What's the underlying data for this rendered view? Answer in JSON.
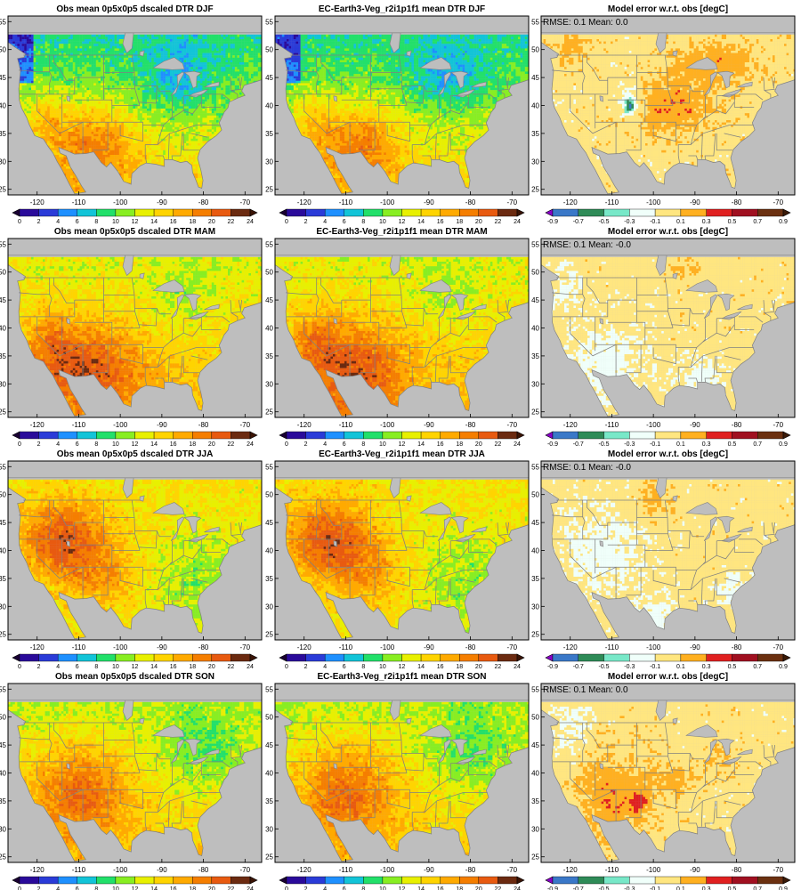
{
  "figure": {
    "panels": [
      {
        "title": "Obs mean 0p5x0p5 dscaled DTR DJF",
        "kind": "dtr",
        "season": "DJF",
        "annotation": ""
      },
      {
        "title": "EC-Earth3-Veg_r2i1p1f1 mean DTR DJF",
        "kind": "dtr",
        "season": "DJF",
        "annotation": ""
      },
      {
        "title": "Model error w.r.t. obs [degC]",
        "kind": "err",
        "season": "DJF",
        "annotation": "RMSE: 0.1   Mean: 0.0"
      },
      {
        "title": "Obs mean 0p5x0p5 dscaled DTR MAM",
        "kind": "dtr",
        "season": "MAM",
        "annotation": ""
      },
      {
        "title": "EC-Earth3-Veg_r2i1p1f1 mean DTR MAM",
        "kind": "dtr",
        "season": "MAM",
        "annotation": ""
      },
      {
        "title": "Model error w.r.t. obs [degC]",
        "kind": "err",
        "season": "MAM",
        "annotation": "RMSE: 0.1   Mean: -0.0"
      },
      {
        "title": "Obs mean 0p5x0p5 dscaled DTR JJA",
        "kind": "dtr",
        "season": "JJA",
        "annotation": ""
      },
      {
        "title": "EC-Earth3-Veg_r2i1p1f1 mean DTR JJA",
        "kind": "dtr",
        "season": "JJA",
        "annotation": ""
      },
      {
        "title": "Model error w.r.t. obs [degC]",
        "kind": "err",
        "season": "JJA",
        "annotation": "RMSE: 0.1   Mean: -0.0"
      },
      {
        "title": "Obs mean 0p5x0p5 dscaled DTR SON",
        "kind": "dtr",
        "season": "SON",
        "annotation": ""
      },
      {
        "title": "EC-Earth3-Veg_r2i1p1f1 mean DTR SON",
        "kind": "dtr",
        "season": "SON",
        "annotation": ""
      },
      {
        "title": "Model error w.r.t. obs [degC]",
        "kind": "err",
        "season": "SON",
        "annotation": "RMSE: 0.1   Mean: 0.0"
      }
    ],
    "colors": {
      "ocean_missing": "#bebebe",
      "border_lines": "#808080"
    }
  },
  "chart_data": [
    {
      "type": "heatmap",
      "role": "longitude/latitude map axes (shared by all 12 panels)",
      "xlim": [
        -127,
        -66
      ],
      "ylim": [
        24,
        56
      ],
      "xticks": [
        -120,
        -110,
        -100,
        -90,
        -80,
        -70
      ],
      "xtick_labels": [
        "-120",
        "-110",
        "-100",
        "-90",
        "-80",
        "-70"
      ],
      "yticks": [
        25,
        30,
        35,
        40,
        45,
        50,
        55
      ],
      "ytick_labels": [
        "25",
        "30",
        "35",
        "40",
        "45",
        "50",
        "55"
      ],
      "data_extent_lat_max": 53,
      "grid": false
    },
    {
      "type": "heatmap",
      "role": "DTR colorbar (columns 1-2)",
      "levels": [
        0,
        2,
        4,
        6,
        8,
        10,
        12,
        14,
        16,
        18,
        20,
        22,
        24
      ],
      "level_labels": [
        "0",
        "2",
        "4",
        "6",
        "8",
        "10",
        "12",
        "14",
        "16",
        "18",
        "20",
        "22",
        "24"
      ],
      "colors": [
        "#1a0033",
        "#2a0a9a",
        "#2a3bd8",
        "#1e90ff",
        "#12c4d8",
        "#22e06a",
        "#88ee22",
        "#e8f000",
        "#ffd400",
        "#ffaa00",
        "#f57e00",
        "#e85a10",
        "#6b2a10",
        "#3a1405"
      ],
      "extend": "both"
    },
    {
      "type": "heatmap",
      "role": "Model error colorbar (column 3)",
      "levels": [
        -0.9,
        -0.7,
        -0.5,
        -0.3,
        -0.1,
        0.1,
        0.3,
        0.5,
        0.7,
        0.9
      ],
      "level_labels": [
        "-0.9",
        "-0.7",
        "-0.5",
        "-0.3",
        "-0.1",
        "0.1",
        "0.3",
        "0.5",
        "0.7",
        "0.9"
      ],
      "colors": [
        "#8a00c8",
        "#3a78c8",
        "#2e8b57",
        "#78e8c8",
        "#f0fffa",
        "#ffe680",
        "#ffb020",
        "#e02020",
        "#a01020",
        "#6b3010",
        "#3a1a08"
      ],
      "extend": "both"
    }
  ]
}
